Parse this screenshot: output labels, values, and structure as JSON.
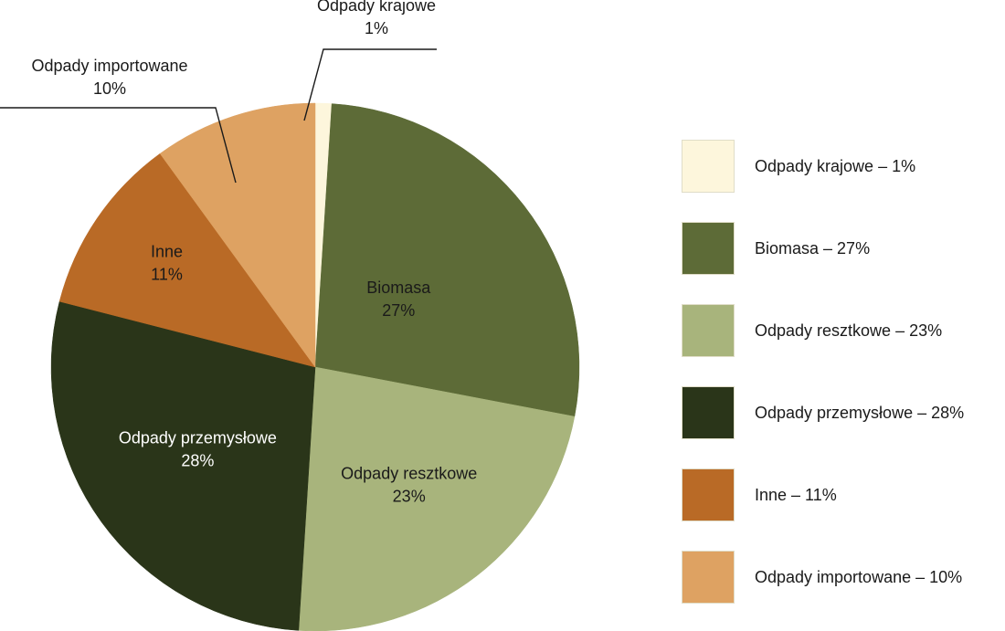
{
  "chart_data": {
    "type": "pie",
    "title": "",
    "slices": [
      {
        "label": "Odpady krajowe",
        "percent_label": "1%",
        "value": 1,
        "color": "#fdf6dc",
        "legend": "Odpady krajowe – 1%"
      },
      {
        "label": "Biomasa",
        "percent_label": "27%",
        "value": 27,
        "color": "#5d6b37",
        "legend": "Biomasa – 27%"
      },
      {
        "label": "Odpady resztkowe",
        "percent_label": "23%",
        "value": 23,
        "color": "#a8b47c",
        "legend": "Odpady resztkowe – 23%"
      },
      {
        "label": "Odpady przemysłowe",
        "percent_label": "28%",
        "value": 28,
        "color": "#2a3519",
        "legend": "Odpady przemysłowe – 28%"
      },
      {
        "label": "Inne",
        "percent_label": "11%",
        "value": 11,
        "color": "#b96a26",
        "legend": "Inne – 11%"
      },
      {
        "label": "Odpady importowane",
        "percent_label": "10%",
        "value": 10,
        "color": "#dea262",
        "legend": "Odpady importowane – 10%"
      }
    ],
    "legend_position": "right"
  }
}
